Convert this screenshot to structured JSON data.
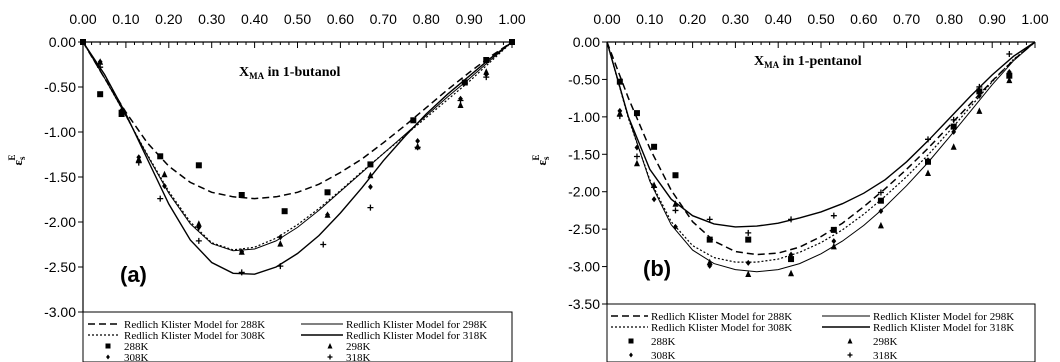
{
  "chart_data": [
    {
      "type": "scatter",
      "panel_tag": "(a)",
      "title_main": "X",
      "title_sub": "MA",
      "title_rest": " in 1-butanol",
      "ylabel_main": "ε",
      "ylabel_sub": "s",
      "ylabel_sup": "E",
      "xlim": [
        0,
        1
      ],
      "ylim": [
        -3,
        0
      ],
      "xticks": [
        "0.00",
        "0.10",
        "0.20",
        "0.30",
        "0.40",
        "0.50",
        "0.60",
        "0.70",
        "0.80",
        "0.90",
        "1.00"
      ],
      "yticks": [
        "0.00",
        "-0.50",
        "-1.00",
        "-1.50",
        "-2.00",
        "-2.50",
        "-3.00"
      ],
      "series": [
        {
          "name": "288K",
          "marker": "square",
          "x": [
            0,
            0.04,
            0.09,
            0.18,
            0.27,
            0.37,
            0.47,
            0.57,
            0.67,
            0.77,
            0.89,
            0.94,
            1
          ],
          "y": [
            0,
            -0.58,
            -0.8,
            -1.27,
            -1.37,
            -1.7,
            -1.88,
            -1.67,
            -1.36,
            -0.87,
            -0.45,
            -0.2,
            0
          ]
        },
        {
          "name": "298K",
          "marker": "triangle",
          "x": [
            0.04,
            0.09,
            0.13,
            0.19,
            0.27,
            0.37,
            0.46,
            0.57,
            0.67,
            0.78,
            0.88,
            0.94
          ],
          "y": [
            -0.22,
            -0.77,
            -1.3,
            -1.47,
            -2.02,
            -2.33,
            -2.24,
            -1.92,
            -1.48,
            -1.16,
            -0.7,
            -0.33
          ]
        },
        {
          "name": "308K",
          "marker": "diamond",
          "x": [
            0.04,
            0.09,
            0.13,
            0.19,
            0.27,
            0.37,
            0.46,
            0.57,
            0.67,
            0.78,
            0.88,
            0.94
          ],
          "y": [
            -0.22,
            -0.76,
            -1.28,
            -1.6,
            -2.06,
            -2.33,
            -2.17,
            -1.92,
            -1.61,
            -1.1,
            -0.63,
            -0.36
          ]
        },
        {
          "name": "318K",
          "marker": "plus",
          "x": [
            0.04,
            0.09,
            0.13,
            0.18,
            0.27,
            0.37,
            0.46,
            0.56,
            0.67,
            0.78,
            0.88,
            0.94
          ],
          "y": [
            -0.28,
            -0.76,
            -1.34,
            -1.74,
            -2.21,
            -2.56,
            -2.49,
            -2.25,
            -1.84,
            -1.17,
            -0.65,
            -0.39
          ]
        }
      ],
      "curves": [
        {
          "name": "Redlich Klister Model for 288K",
          "style": "dashed",
          "x": [
            0,
            0.05,
            0.1,
            0.15,
            0.2,
            0.25,
            0.3,
            0.35,
            0.4,
            0.45,
            0.5,
            0.55,
            0.6,
            0.65,
            0.7,
            0.75,
            0.8,
            0.85,
            0.9,
            0.95,
            1
          ],
          "y": [
            0,
            -0.4,
            -0.78,
            -1.12,
            -1.38,
            -1.56,
            -1.67,
            -1.72,
            -1.74,
            -1.72,
            -1.67,
            -1.58,
            -1.45,
            -1.3,
            -1.12,
            -0.93,
            -0.73,
            -0.53,
            -0.34,
            -0.16,
            0
          ]
        },
        {
          "name": "Redlich Klister Model for 298K",
          "style": "solid-thin",
          "x": [
            0,
            0.05,
            0.1,
            0.15,
            0.2,
            0.25,
            0.3,
            0.35,
            0.4,
            0.45,
            0.5,
            0.55,
            0.6,
            0.65,
            0.7,
            0.75,
            0.8,
            0.85,
            0.9,
            0.95,
            1
          ],
          "y": [
            0,
            -0.4,
            -0.82,
            -1.26,
            -1.68,
            -2.02,
            -2.24,
            -2.32,
            -2.3,
            -2.21,
            -2.06,
            -1.87,
            -1.66,
            -1.45,
            -1.24,
            -1.03,
            -0.82,
            -0.61,
            -0.41,
            -0.2,
            0
          ]
        },
        {
          "name": "Redlich Klister Model for 308K",
          "style": "dotted",
          "x": [
            0,
            0.05,
            0.1,
            0.15,
            0.2,
            0.25,
            0.3,
            0.35,
            0.4,
            0.45,
            0.5,
            0.55,
            0.6,
            0.65,
            0.7,
            0.75,
            0.8,
            0.85,
            0.9,
            0.95,
            1
          ],
          "y": [
            0,
            -0.4,
            -0.82,
            -1.25,
            -1.66,
            -2.0,
            -2.23,
            -2.31,
            -2.28,
            -2.18,
            -2.03,
            -1.85,
            -1.65,
            -1.44,
            -1.24,
            -1.04,
            -0.84,
            -0.64,
            -0.44,
            -0.22,
            0
          ]
        },
        {
          "name": "Redlich Klister Model for 318K",
          "style": "solid",
          "x": [
            0,
            0.05,
            0.1,
            0.15,
            0.2,
            0.25,
            0.3,
            0.35,
            0.4,
            0.45,
            0.5,
            0.55,
            0.6,
            0.65,
            0.7,
            0.75,
            0.8,
            0.85,
            0.9,
            0.95,
            1
          ],
          "y": [
            0,
            -0.36,
            -0.8,
            -1.3,
            -1.8,
            -2.2,
            -2.45,
            -2.57,
            -2.58,
            -2.5,
            -2.35,
            -2.15,
            -1.9,
            -1.62,
            -1.32,
            -1.05,
            -0.8,
            -0.58,
            -0.38,
            -0.18,
            0
          ]
        }
      ],
      "legend": {
        "curve_labels": [
          "Redlich Klister Model for 288K",
          "Redlich Klister Model for 298K",
          "Redlich Klister Model for 308K",
          "Redlich Klister Model for 318K"
        ],
        "point_labels": [
          "288K",
          "298K",
          "308K",
          "318K"
        ]
      }
    },
    {
      "type": "scatter",
      "panel_tag": "(b)",
      "title_main": "X",
      "title_sub": "MA",
      "title_rest": " in 1-pentanol",
      "ylabel_main": "ε",
      "ylabel_sub": "s",
      "ylabel_sup": "E",
      "xlim": [
        0,
        1
      ],
      "ylim": [
        -3.5,
        0
      ],
      "xticks": [
        "0.00",
        "0.10",
        "0.20",
        "0.30",
        "0.40",
        "0.50",
        "0.60",
        "0.70",
        "0.80",
        "0.90",
        "1.00"
      ],
      "yticks": [
        "0.00",
        "-0.50",
        "-1.00",
        "-1.50",
        "-2.00",
        "-2.50",
        "-3.00",
        "-3.50"
      ],
      "series": [
        {
          "name": "288K",
          "marker": "square",
          "x": [
            0.03,
            0.07,
            0.11,
            0.16,
            0.24,
            0.33,
            0.43,
            0.53,
            0.64,
            0.75,
            0.81,
            0.87,
            0.94
          ],
          "y": [
            -0.53,
            -0.95,
            -1.4,
            -1.78,
            -2.64,
            -2.64,
            -2.9,
            -2.51,
            -2.12,
            -1.6,
            -1.13,
            -0.66,
            -0.45
          ]
        },
        {
          "name": "298K",
          "marker": "triangle",
          "x": [
            0.03,
            0.07,
            0.11,
            0.16,
            0.24,
            0.33,
            0.43,
            0.53,
            0.64,
            0.75,
            0.81,
            0.87,
            0.94
          ],
          "y": [
            -0.95,
            -1.62,
            -1.91,
            -2.16,
            -2.94,
            -3.1,
            -3.09,
            -2.73,
            -2.45,
            -1.75,
            -1.4,
            -0.92,
            -0.51
          ]
        },
        {
          "name": "308K",
          "marker": "diamond",
          "x": [
            0.03,
            0.07,
            0.11,
            0.16,
            0.24,
            0.33,
            0.43,
            0.53,
            0.64,
            0.75,
            0.81,
            0.87,
            0.94
          ],
          "y": [
            -0.92,
            -1.41,
            -2.1,
            -2.47,
            -2.99,
            -2.95,
            -2.84,
            -2.66,
            -2.26,
            -1.58,
            -1.2,
            -0.72,
            -0.4
          ]
        },
        {
          "name": "318K",
          "marker": "plus",
          "x": [
            0.03,
            0.07,
            0.11,
            0.16,
            0.24,
            0.33,
            0.43,
            0.53,
            0.64,
            0.75,
            0.81,
            0.87,
            0.94
          ],
          "y": [
            -0.99,
            -1.53,
            -1.94,
            -2.25,
            -2.37,
            -2.55,
            -2.37,
            -2.32,
            -2.01,
            -1.3,
            -1.04,
            -0.6,
            -0.16
          ]
        }
      ],
      "curves": [
        {
          "name": "Redlich Klister Model for 288K",
          "style": "dashed",
          "x": [
            0,
            0.05,
            0.1,
            0.15,
            0.2,
            0.25,
            0.3,
            0.35,
            0.4,
            0.45,
            0.5,
            0.55,
            0.6,
            0.65,
            0.7,
            0.75,
            0.8,
            0.85,
            0.9,
            0.95,
            1
          ],
          "y": [
            0,
            -0.75,
            -1.42,
            -1.98,
            -2.4,
            -2.66,
            -2.8,
            -2.84,
            -2.82,
            -2.74,
            -2.6,
            -2.42,
            -2.2,
            -1.96,
            -1.7,
            -1.42,
            -1.12,
            -0.82,
            -0.52,
            -0.24,
            0
          ]
        },
        {
          "name": "Redlich Klister Model for 298K",
          "style": "solid-thin",
          "x": [
            0,
            0.05,
            0.1,
            0.15,
            0.2,
            0.25,
            0.3,
            0.35,
            0.4,
            0.45,
            0.5,
            0.55,
            0.6,
            0.65,
            0.7,
            0.75,
            0.8,
            0.85,
            0.9,
            0.95,
            1
          ],
          "y": [
            0,
            -1.0,
            -1.86,
            -2.44,
            -2.78,
            -2.96,
            -3.04,
            -3.07,
            -3.04,
            -2.96,
            -2.83,
            -2.66,
            -2.45,
            -2.2,
            -1.92,
            -1.61,
            -1.27,
            -0.92,
            -0.57,
            -0.25,
            0
          ]
        },
        {
          "name": "Redlich Klister Model for 308K",
          "style": "dotted",
          "x": [
            0,
            0.05,
            0.1,
            0.15,
            0.2,
            0.25,
            0.3,
            0.35,
            0.4,
            0.45,
            0.5,
            0.55,
            0.6,
            0.65,
            0.7,
            0.75,
            0.8,
            0.85,
            0.9,
            0.95,
            1
          ],
          "y": [
            0,
            -1.02,
            -1.84,
            -2.4,
            -2.72,
            -2.88,
            -2.94,
            -2.94,
            -2.9,
            -2.81,
            -2.68,
            -2.51,
            -2.3,
            -2.06,
            -1.8,
            -1.51,
            -1.19,
            -0.86,
            -0.53,
            -0.23,
            0
          ]
        },
        {
          "name": "Redlich Klister Model for 318K",
          "style": "solid",
          "x": [
            0,
            0.05,
            0.1,
            0.15,
            0.2,
            0.25,
            0.3,
            0.35,
            0.4,
            0.45,
            0.5,
            0.55,
            0.6,
            0.65,
            0.7,
            0.75,
            0.8,
            0.85,
            0.9,
            0.95,
            1
          ],
          "y": [
            0,
            -1.0,
            -1.7,
            -2.1,
            -2.32,
            -2.43,
            -2.47,
            -2.46,
            -2.42,
            -2.35,
            -2.27,
            -2.16,
            -2.02,
            -1.84,
            -1.6,
            -1.32,
            -1.02,
            -0.72,
            -0.44,
            -0.19,
            0
          ]
        }
      ],
      "legend": {
        "curve_labels": [
          "Redlich Klister Model for 288K",
          "Redlich Klister Model for 298K",
          "Redlich Klister Model for 308K",
          "Redlich Klister Model for 318K"
        ],
        "point_labels": [
          "288K",
          "298K",
          "308K",
          "318K"
        ]
      }
    }
  ]
}
